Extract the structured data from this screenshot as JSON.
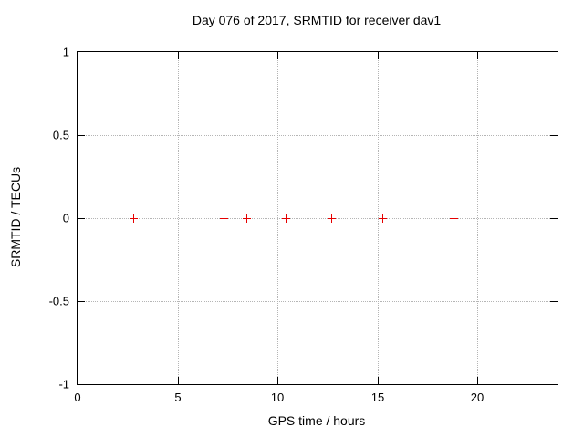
{
  "page": {
    "background_color": "#ffffff",
    "text_color": "#000000",
    "grid_color": "#b5b5b5",
    "axis_color": "#000000"
  },
  "chart_data": {
    "type": "scatter",
    "title": "Day 076 of 2017, SRMTID for receiver dav1",
    "xlabel": "GPS time / hours",
    "ylabel": "SRMTID / TECUs",
    "xlim": [
      0,
      24
    ],
    "ylim": [
      -1,
      1
    ],
    "xticks": [
      0,
      5,
      10,
      15,
      20
    ],
    "xtick_labels": [
      "0",
      "5",
      "10",
      "15",
      "20"
    ],
    "yticks": [
      1,
      0.5,
      0,
      -0.5,
      -1
    ],
    "ytick_labels": [
      "1",
      "0.5",
      "0",
      "-0.5",
      "-1"
    ],
    "grid": true,
    "legend_position": "none",
    "marker": {
      "shape": "plus",
      "color": "#e60000",
      "size": 9
    },
    "series": [
      {
        "name": "SRMTID",
        "points": [
          {
            "x": 2.8,
            "y": 0
          },
          {
            "x": 7.3,
            "y": 0
          },
          {
            "x": 8.45,
            "y": 0
          },
          {
            "x": 10.4,
            "y": 0
          },
          {
            "x": 12.7,
            "y": 0
          },
          {
            "x": 15.25,
            "y": 0
          },
          {
            "x": 18.8,
            "y": 0
          }
        ]
      }
    ]
  }
}
